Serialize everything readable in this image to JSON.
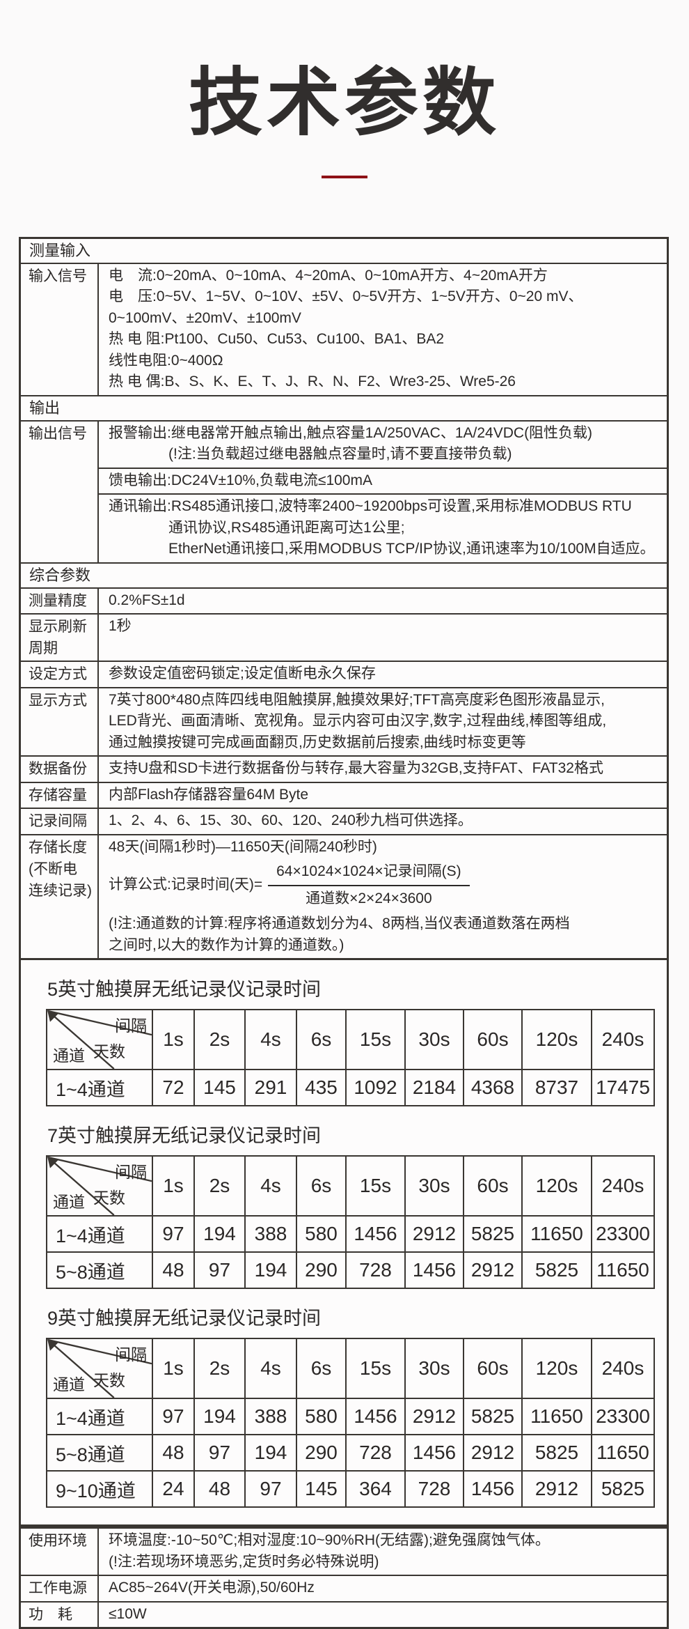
{
  "page": {
    "title": "技术参数"
  },
  "accent_color": "#8e1116",
  "spec_table": {
    "rows": [
      {
        "type": "section",
        "label": "测量输入"
      },
      {
        "type": "row",
        "label": "输入信号",
        "cells": [
          {
            "items": [
              "电　流:0~20mA、0~10mA、4~20mA、0~10mA开方、4~20mA开方",
              "电　压:0~5V、1~5V、0~10V、±5V、0~5V开方、1~5V开方、0~20 mV、",
              "0~100mV、±20mV、±100mV",
              "热 电 阻:Pt100、Cu50、Cu53、Cu100、BA1、BA2",
              "线性电阻:0~400Ω",
              "热 电 偶:B、S、K、E、T、J、R、N、F2、Wre3-25、Wre5-26"
            ]
          }
        ]
      },
      {
        "type": "section",
        "label": "输出"
      },
      {
        "type": "row",
        "label": "输出信号",
        "cells": [
          {
            "items": [
              "报警输出:继电器常开触点输出,触点容量1A/250VAC、1A/24VDC(阻性负载)",
              {
                "text": "(!注:当负载超过继电器触点容量时,请不要直接带负载)",
                "indent": true
              }
            ]
          },
          {
            "items": [
              "馈电输出:DC24V±10%,负载电流≤100mA"
            ]
          },
          {
            "items": [
              "通讯输出:RS485通讯接口,波特率2400~19200bps可设置,采用标准MODBUS RTU",
              {
                "text": "通讯协议,RS485通讯距离可达1公里;",
                "indent": true
              },
              {
                "text": "EtherNet通讯接口,采用MODBUS TCP/IP协议,通讯速率为10/100M自适应。",
                "indent": true
              }
            ]
          }
        ]
      },
      {
        "type": "section",
        "label": "综合参数"
      },
      {
        "type": "row",
        "label": "测量精度",
        "cells": [
          {
            "items": [
              "0.2%FS±1d"
            ]
          }
        ]
      },
      {
        "type": "row",
        "label": "显示刷新\n周期",
        "cells": [
          {
            "items": [
              "1秒"
            ]
          }
        ]
      },
      {
        "type": "row",
        "label": "设定方式",
        "cells": [
          {
            "items": [
              "参数设定值密码锁定;设定值断电永久保存"
            ]
          }
        ]
      },
      {
        "type": "row",
        "label": "显示方式",
        "cells": [
          {
            "items": [
              "7英寸800*480点阵四线电阻触摸屏,触摸效果好;TFT高亮度彩色图形液晶显示,",
              "LED背光、画面清晰、宽视角。显示内容可由汉字,数字,过程曲线,棒图等组成,",
              "通过触摸按键可完成画面翻页,历史数据前后搜索,曲线时标变更等"
            ]
          }
        ]
      },
      {
        "type": "row",
        "label": "数据备份",
        "cells": [
          {
            "items": [
              "支持U盘和SD卡进行数据备份与转存,最大容量为32GB,支持FAT、FAT32格式"
            ]
          }
        ]
      },
      {
        "type": "row",
        "label": "存储容量",
        "cells": [
          {
            "items": [
              "内部Flash存储器容量64M Byte"
            ]
          }
        ]
      },
      {
        "type": "row",
        "label": "记录间隔",
        "cells": [
          {
            "items": [
              "1、2、4、6、15、30、60、120、240秒九档可供选择。"
            ]
          }
        ]
      },
      {
        "type": "row",
        "label": "存储长度\n(不断电\n连续记录)",
        "cells": [
          {
            "items": [
              "48天(间隔1秒时)—11650天(间隔240秒时)",
              {
                "formula": {
                  "prefix": "计算公式:记录时间(天)=",
                  "numerator": "64×1024×1024×记录间隔(S)",
                  "denominator": "通道数×2×24×3600"
                }
              },
              "(!注:通道数的计算:程序将通道数划分为4、8两档,当仪表通道数落在两档",
              "之间时,以大的数作为计算的通道数。)"
            ]
          }
        ]
      }
    ]
  },
  "record_tables": {
    "corner": {
      "top": "间隔",
      "middle": "天数",
      "bottom": "通道"
    },
    "intervals": [
      "1s",
      "2s",
      "4s",
      "6s",
      "15s",
      "30s",
      "60s",
      "120s",
      "240s"
    ],
    "tables": [
      {
        "title": "5英寸触摸屏无纸记录仪记录时间",
        "rows": [
          {
            "label": "1~4通道",
            "values": [
              72,
              145,
              291,
              435,
              1092,
              2184,
              4368,
              8737,
              17475
            ]
          }
        ]
      },
      {
        "title": "7英寸触摸屏无纸记录仪记录时间",
        "rows": [
          {
            "label": "1~4通道",
            "values": [
              97,
              194,
              388,
              580,
              1456,
              2912,
              5825,
              11650,
              23300
            ]
          },
          {
            "label": "5~8通道",
            "values": [
              48,
              97,
              194,
              290,
              728,
              1456,
              2912,
              5825,
              11650
            ]
          }
        ]
      },
      {
        "title": "9英寸触摸屏无纸记录仪记录时间",
        "rows": [
          {
            "label": "1~4通道",
            "values": [
              97,
              194,
              388,
              580,
              1456,
              2912,
              5825,
              11650,
              23300
            ]
          },
          {
            "label": "5~8通道",
            "values": [
              48,
              97,
              194,
              290,
              728,
              1456,
              2912,
              5825,
              11650
            ]
          },
          {
            "label": "9~10通道",
            "values": [
              24,
              48,
              97,
              145,
              364,
              728,
              1456,
              2912,
              5825
            ]
          }
        ]
      }
    ]
  },
  "env_table": {
    "rows": [
      {
        "type": "row",
        "label": "使用环境",
        "cells": [
          {
            "items": [
              "环境温度:-10~50℃;相对湿度:10~90%RH(无结露);避免强腐蚀气体。",
              "(!注:若现场环境恶劣,定货时务必特殊说明)"
            ]
          }
        ]
      },
      {
        "type": "row",
        "label": "工作电源",
        "cells": [
          {
            "items": [
              "AC85~264V(开关电源),50/60Hz"
            ]
          }
        ]
      },
      {
        "type": "row",
        "label": "功　耗",
        "cells": [
          {
            "items": [
              "≤10W"
            ]
          }
        ]
      }
    ]
  }
}
